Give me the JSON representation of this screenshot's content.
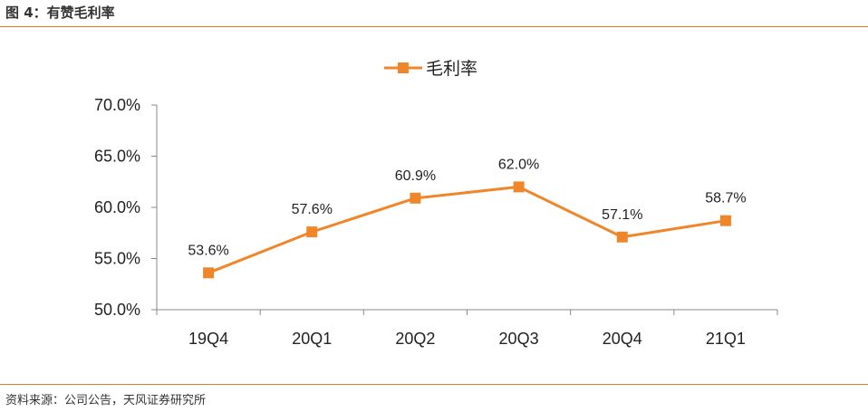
{
  "figure": {
    "title": "图 4：有赞毛利率",
    "source": "资料来源：公司公告，天风证券研究所"
  },
  "chart_data": {
    "type": "line",
    "categories": [
      "19Q4",
      "20Q1",
      "20Q2",
      "20Q3",
      "20Q4",
      "21Q1"
    ],
    "series": [
      {
        "name": "毛利率",
        "values": [
          53.6,
          57.6,
          60.9,
          62.0,
          57.1,
          58.7
        ],
        "labels": [
          "53.6%",
          "57.6%",
          "60.9%",
          "62.0%",
          "57.1%",
          "58.7%"
        ],
        "color": "#f0862a"
      }
    ],
    "ylim": [
      50,
      70
    ],
    "yticks": [
      50,
      55,
      60,
      65,
      70
    ],
    "ytick_labels": [
      "50.0%",
      "55.0%",
      "60.0%",
      "65.0%",
      "70.0%"
    ],
    "legend_position": "top-center",
    "grid": false
  }
}
